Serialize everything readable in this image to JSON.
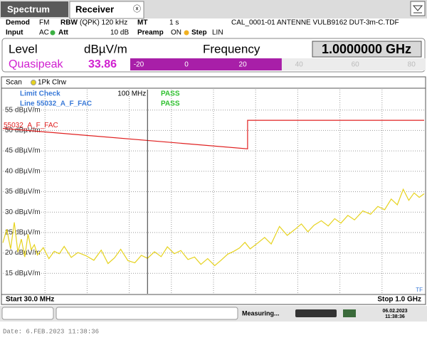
{
  "tabs": {
    "spectrum": "Spectrum",
    "receiver": "Receiver",
    "close": "ⓧ"
  },
  "header": {
    "demod_label": "Demod",
    "demod": "FM",
    "rbw_label": "RBW",
    "rbw": "(QPK) 120 kHz",
    "mt_label": "MT",
    "mt": "1 s",
    "transducer": "CAL_0001-01 ANTENNE VULB9162 DUT-3m-C.TDF",
    "input_label": "Input",
    "input": "AC",
    "att_label": "Att",
    "att": "10 dB",
    "preamp_label": "Preamp",
    "preamp": "ON",
    "step_label": "Step",
    "step": "LIN"
  },
  "readout": {
    "level_label": "Level",
    "unit": "dBµV/m",
    "frequency_label": "Frequency",
    "frequency": "1.0000000 GHz",
    "detector": "Quasipeak",
    "value": 33.86,
    "bar_lim": [
      -20,
      85
    ],
    "bar_ticks": [
      -20,
      0,
      20,
      40,
      60,
      80
    ]
  },
  "chart_data": {
    "type": "line",
    "xscale": "log",
    "xlim": [
      30,
      1000
    ],
    "ylim": [
      10,
      60
    ],
    "yticks": [
      {
        "value": 15,
        "label": "15 dBµV/m"
      },
      {
        "value": 20,
        "label": "20 dBµV/m"
      },
      {
        "value": 25,
        "label": "25 dBµV/m"
      },
      {
        "value": 30,
        "label": "30 dBµV/m"
      },
      {
        "value": 35,
        "label": "35 dBµV/m"
      },
      {
        "value": 40,
        "label": "40 dBµV/m"
      },
      {
        "value": 45,
        "label": "45 dBµV/m"
      },
      {
        "value": 50,
        "label": "50 dBµV/m"
      },
      {
        "value": 55,
        "label": "55 dBµV/m"
      }
    ],
    "grid": true,
    "scan_label": "Scan",
    "start_label": "Start 30.0 MHz",
    "stop_label": "Stop 1.0 GHz",
    "corner_label": "TF",
    "marker_line": {
      "x": 100,
      "label": "100 MHz"
    },
    "limit_check": {
      "title": "Limit Check",
      "result": "PASS",
      "line_label": "Line 55032_A_F_FAC",
      "line_result": "PASS"
    },
    "series": [
      {
        "name": "1Pk Clrw",
        "color": "#e6d21e",
        "x": [
          30,
          31,
          32,
          33,
          34,
          35,
          36,
          37,
          38,
          39,
          40,
          42,
          44,
          46,
          48,
          50,
          53,
          56,
          60,
          64,
          68,
          72,
          76,
          80,
          85,
          90,
          95,
          100,
          106,
          112,
          118,
          125,
          132,
          140,
          148,
          156,
          165,
          175,
          185,
          195,
          205,
          215,
          225,
          235,
          250,
          265,
          280,
          300,
          320,
          340,
          360,
          380,
          400,
          425,
          450,
          475,
          500,
          530,
          560,
          600,
          640,
          680,
          720,
          760,
          800,
          840,
          880,
          920,
          960,
          1000
        ],
        "values": [
          22.5,
          25.8,
          21.0,
          27.5,
          20.2,
          23.4,
          19.0,
          24.6,
          20.8,
          22.0,
          19.5,
          21.3,
          18.6,
          20.4,
          19.8,
          21.6,
          18.9,
          20.1,
          19.3,
          18.2,
          20.7,
          17.4,
          18.8,
          20.9,
          18.1,
          17.6,
          19.4,
          18.7,
          20.3,
          19.1,
          21.5,
          19.8,
          20.6,
          18.4,
          19.0,
          17.2,
          18.6,
          16.9,
          18.3,
          19.7,
          20.4,
          21.2,
          22.6,
          21.0,
          22.4,
          23.8,
          22.2,
          26.5,
          24.3,
          25.7,
          27.1,
          25.2,
          26.8,
          27.9,
          26.6,
          28.4,
          27.3,
          29.2,
          28.1,
          30.3,
          29.5,
          31.4,
          30.6,
          33.2,
          31.8,
          35.6,
          32.9,
          34.7,
          33.6,
          34.5
        ]
      },
      {
        "name": "55032_A_F_FAC",
        "color": "#e02020",
        "x": [
          30,
          230,
          230,
          1000
        ],
        "values": [
          50.5,
          45.5,
          52.5,
          52.5
        ]
      }
    ]
  },
  "status": {
    "measuring": "Measuring...",
    "date": "06.02.2023",
    "time": "11:38:36"
  },
  "footer": "Date: 6.FEB.2023  11:38:36"
}
